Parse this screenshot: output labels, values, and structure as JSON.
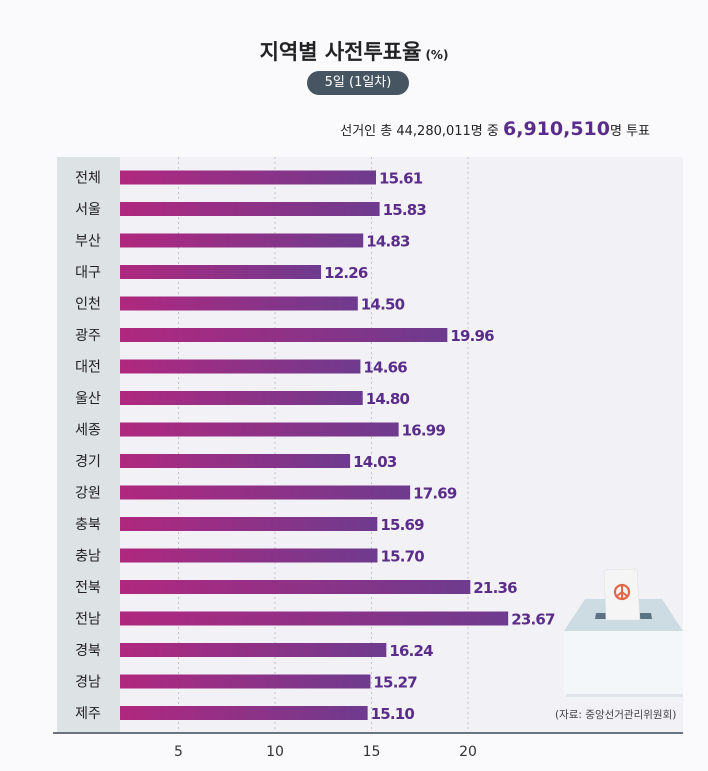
{
  "header": {
    "title": "지역별 사전투표율",
    "title_unit": "(%)",
    "date_badge": "5일 (1일차)",
    "summary_prefix": "선거인 총 44,280,011명 중 ",
    "summary_highlight": "6,910,510",
    "summary_suffix": "명 투표"
  },
  "source": "(자료: 중앙선거관리위원회)",
  "colors": {
    "bar_start": "#b0287f",
    "bar_end": "#6e3b8e",
    "value_label": "#5b2d8a",
    "badge": "#475563"
  },
  "icons": {
    "ballot_box": "ballot-box-icon"
  },
  "chart_data": {
    "type": "bar",
    "orientation": "horizontal",
    "categories": [
      "전체",
      "서울",
      "부산",
      "대구",
      "인천",
      "광주",
      "대전",
      "울산",
      "세종",
      "경기",
      "강원",
      "충북",
      "충남",
      "전북",
      "전남",
      "경북",
      "경남",
      "제주"
    ],
    "values": [
      15.61,
      15.83,
      14.83,
      12.26,
      14.5,
      19.96,
      14.66,
      14.8,
      16.99,
      14.03,
      17.69,
      15.69,
      15.7,
      21.36,
      23.67,
      16.24,
      15.27,
      15.1
    ],
    "value_labels": [
      "15.61",
      "15.83",
      "14.83",
      "12.26",
      "14.50",
      "19.96",
      "14.66",
      "14.80",
      "16.99",
      "14.03",
      "17.69",
      "15.69",
      "15.70",
      "21.36",
      "23.67",
      "16.24",
      "15.27",
      "15.10"
    ],
    "x_ticks": [
      5,
      10,
      15,
      20
    ],
    "x_tick_labels": [
      "5",
      "10",
      "15",
      "20"
    ],
    "grid": "vertical-dotted",
    "legend": "none"
  }
}
